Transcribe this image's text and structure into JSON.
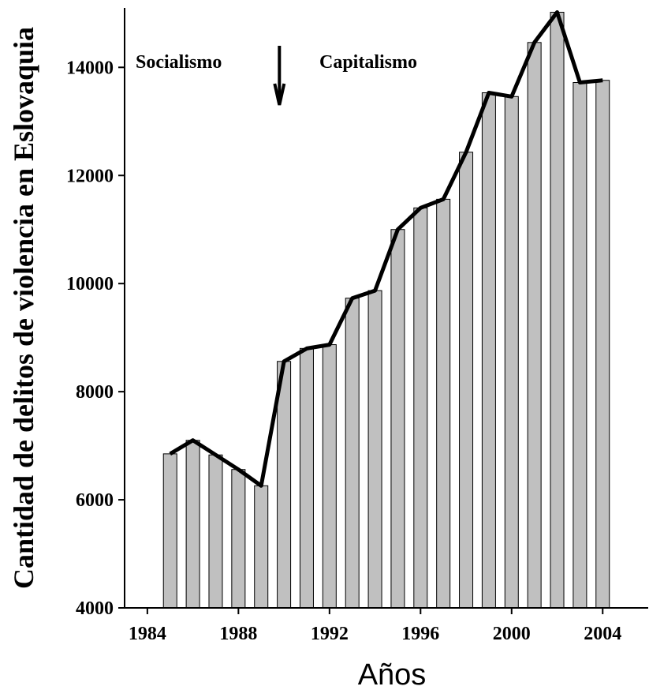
{
  "chart_data": {
    "type": "bar",
    "title": "",
    "xlabel": "Años",
    "ylabel": "Cantidad de delitos de violencia en Eslovaquia",
    "xlim": [
      1983,
      2006
    ],
    "ylim": [
      4000,
      15100
    ],
    "x_ticks": [
      1984,
      1988,
      1992,
      1996,
      2000,
      2004
    ],
    "y_ticks": [
      4000,
      6000,
      8000,
      10000,
      12000,
      14000
    ],
    "x": [
      1985,
      1986,
      1987,
      1988,
      1989,
      1990,
      1991,
      1992,
      1993,
      1994,
      1995,
      1996,
      1997,
      1998,
      1999,
      2000,
      2001,
      2002,
      2003,
      2004
    ],
    "values": [
      6850,
      7100,
      6830,
      6560,
      6260,
      8560,
      8800,
      8870,
      9730,
      9870,
      11000,
      11400,
      11560,
      12430,
      13530,
      13460,
      14460,
      15020,
      13720,
      13760
    ],
    "line_overlay": true,
    "grid": false,
    "bar_color": "#c0c0c0",
    "line_color": "#000000",
    "annotations": {
      "left_text": "Socialismo",
      "right_text": "Capitalismo",
      "arrow_year": 1989.8
    }
  }
}
